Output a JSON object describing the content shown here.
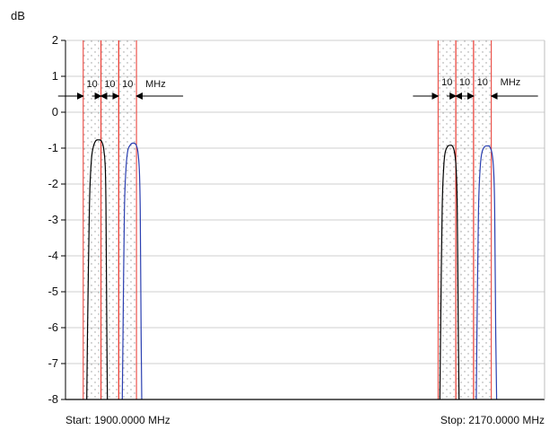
{
  "chart_data": {
    "type": "line",
    "title": "",
    "ylabel": "dB",
    "xlabel": "",
    "start_label": "Start: 1900.0000 MHz",
    "stop_label": "Stop: 2170.0000 MHz",
    "x_range_mhz": [
      1900,
      2170
    ],
    "ylim": [
      -8,
      2
    ],
    "yticks": [
      "2",
      "1",
      "0",
      "-1",
      "-2",
      "-3",
      "-4",
      "-5",
      "-6",
      "-7",
      "-8"
    ],
    "grid": true,
    "bands": [
      {
        "start_mhz": 1910,
        "end_mhz": 1920
      },
      {
        "start_mhz": 1920,
        "end_mhz": 1930
      },
      {
        "start_mhz": 1930,
        "end_mhz": 1940
      },
      {
        "start_mhz": 2110,
        "end_mhz": 2120
      },
      {
        "start_mhz": 2120,
        "end_mhz": 2130
      },
      {
        "start_mhz": 2130,
        "end_mhz": 2140
      }
    ],
    "annotations": [
      {
        "group": "left",
        "labels": [
          "10",
          "10",
          "10"
        ],
        "unit": "MHz"
      },
      {
        "group": "right",
        "labels": [
          "10",
          "10",
          "10"
        ],
        "unit": "MHz"
      }
    ],
    "series": [
      {
        "color": "#000000",
        "x": [
          1912,
          1912.4,
          1913.5,
          1914.5,
          1915.5,
          1917,
          1918.5,
          1920.2,
          1921.5,
          1922.4,
          1922.8,
          1923.3,
          1923.6
        ],
        "y": [
          -8,
          -6.2,
          -2.6,
          -1.4,
          -1.0,
          -0.8,
          -0.77,
          -0.8,
          -1.0,
          -1.5,
          -2.6,
          -6.2,
          -8
        ]
      },
      {
        "color": "#2a3fb0",
        "x": [
          1932,
          1932.4,
          1933.2,
          1934.2,
          1935.2,
          1936.7,
          1938.1,
          1939.7,
          1940.8,
          1941.6,
          1942.1,
          1942.6,
          1943
        ],
        "y": [
          -8,
          -6.2,
          -2.7,
          -1.5,
          -1.05,
          -0.9,
          -0.86,
          -0.9,
          -1.1,
          -1.6,
          -2.7,
          -6.2,
          -8
        ]
      },
      {
        "color": "#000000",
        "x": [
          2111,
          2111.4,
          2112.3,
          2113.2,
          2114.1,
          2115.4,
          2116.8,
          2118.2,
          2119.4,
          2120.2,
          2120.8,
          2121.4,
          2121.8
        ],
        "y": [
          -8,
          -6.2,
          -2.7,
          -1.5,
          -1.1,
          -0.95,
          -0.92,
          -0.95,
          -1.15,
          -1.6,
          -2.7,
          -6.2,
          -8
        ]
      },
      {
        "color": "#2a3fb0",
        "x": [
          2131.5,
          2131.9,
          2132.8,
          2133.8,
          2134.8,
          2136.2,
          2137.6,
          2139.1,
          2140.4,
          2141.3,
          2141.9,
          2142.5,
          2143
        ],
        "y": [
          -8,
          -6.2,
          -2.7,
          -1.5,
          -1.1,
          -0.96,
          -0.94,
          -0.96,
          -1.15,
          -1.6,
          -2.7,
          -6.2,
          -8
        ]
      }
    ],
    "colors": {
      "band_edge": "#e8342b",
      "band_fill_dot": "#a0a0a0",
      "grid": "#cfcfcf",
      "axis": "#000000"
    }
  }
}
